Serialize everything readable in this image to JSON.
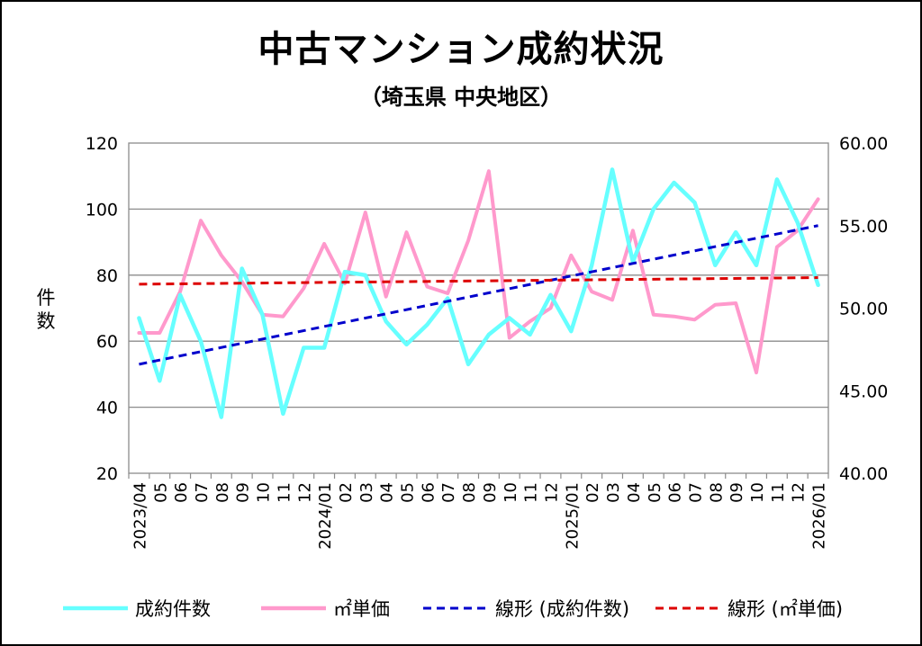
{
  "chart_data": {
    "type": "line",
    "title": "中古マンション成約状況",
    "subtitle": "（埼玉県 中央地区）",
    "ylabel_left": "件数",
    "ylabel_right": "",
    "ylim_left": [
      20,
      120
    ],
    "ylim_right": [
      40,
      60
    ],
    "yticks_left": [
      "20",
      "40",
      "60",
      "80",
      "100",
      "120"
    ],
    "yticks_right": [
      "40.00",
      "45.00",
      "50.00",
      "55.00",
      "60.00"
    ],
    "categories": [
      "2023/04",
      "05",
      "06",
      "07",
      "08",
      "09",
      "10",
      "11",
      "12",
      "2024/01",
      "02",
      "03",
      "04",
      "05",
      "06",
      "07",
      "08",
      "09",
      "10",
      "11",
      "12",
      "2025/01",
      "02",
      "03",
      "04",
      "05",
      "06",
      "07",
      "08",
      "09",
      "10",
      "11",
      "12",
      "2026/01"
    ],
    "series": [
      {
        "name": "成約件数",
        "axis": "left",
        "color": "#66ffff",
        "style": "solid",
        "values": [
          67,
          48,
          74,
          60,
          37,
          82,
          68,
          38,
          58,
          58,
          81,
          80,
          66,
          59,
          65,
          73,
          53,
          62,
          67,
          62,
          74,
          63,
          83,
          112,
          84,
          100,
          108,
          102,
          83,
          93,
          83,
          109,
          96,
          77
        ]
      },
      {
        "name": "㎡単価",
        "axis": "left_scaled",
        "color": "#ff99cc",
        "style": "solid",
        "values_right_axis": [
          48.5,
          48.5,
          51.0,
          55.3,
          53.2,
          51.6,
          49.6,
          49.5,
          51.2,
          53.9,
          51.5,
          55.8,
          50.7,
          54.6,
          51.3,
          50.9,
          54.1,
          58.3,
          48.2,
          49.2,
          50.0,
          53.2,
          51.0,
          50.5,
          54.7,
          49.6,
          49.5,
          49.3,
          50.2,
          50.3,
          46.1,
          53.7,
          54.7,
          56.6
        ]
      },
      {
        "name": "線形 (成約件数)",
        "axis": "left",
        "color": "#0000cc",
        "style": "dashed",
        "start_value": 53,
        "end_value": 95
      },
      {
        "name": "線形 (㎡単価)",
        "axis": "right",
        "color": "#dd0000",
        "style": "dashed",
        "start_value": 51.45,
        "end_value": 51.85
      }
    ],
    "legend": {
      "position": "bottom",
      "items": [
        {
          "label": "成約件数",
          "color": "#66ffff",
          "style": "solid"
        },
        {
          "label": "㎡単価",
          "color": "#ff99cc",
          "style": "solid"
        },
        {
          "label": "線形 (成約件数)",
          "color": "#0000cc",
          "style": "dashed"
        },
        {
          "label": "線形 (㎡単価)",
          "color": "#dd0000",
          "style": "dashed"
        }
      ]
    },
    "grid": true
  }
}
